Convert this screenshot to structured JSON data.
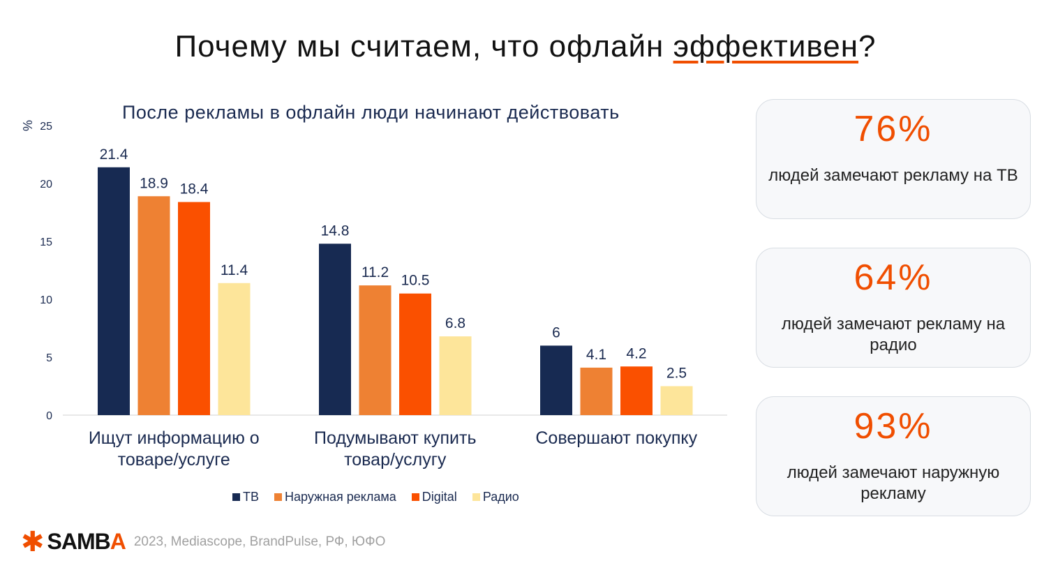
{
  "title": {
    "pre": "Почему мы считаем, что офлайн ",
    "underlined": "эффективен",
    "post": "?"
  },
  "chart_data": {
    "type": "bar",
    "title": "После рекламы в офлайн люди начинают действовать",
    "ylabel": "%",
    "ylim": [
      0,
      25
    ],
    "yticks": [
      0,
      5,
      10,
      15,
      20,
      25
    ],
    "categories": [
      "Ищут информацию о товаре/услуге",
      "Подумывают купить товар/услугу",
      "Совершают покупку"
    ],
    "series": [
      {
        "name": "ТВ",
        "color": "#172a52",
        "values": [
          21.4,
          14.8,
          6
        ]
      },
      {
        "name": "Наружная реклама",
        "color": "#ee8133",
        "values": [
          18.9,
          11.2,
          4.1
        ]
      },
      {
        "name": "Digital",
        "color": "#fa5000",
        "values": [
          18.4,
          10.5,
          4.2
        ]
      },
      {
        "name": "Радио",
        "color": "#fde59a",
        "values": [
          11.4,
          6.8,
          2.5
        ]
      }
    ],
    "legend": "bottom",
    "grid": false
  },
  "cards": [
    {
      "value": "76%",
      "text": "людей замечают рекламу на ТВ"
    },
    {
      "value": "64%",
      "text": "людей замечают рекламу на радио"
    },
    {
      "value": "93%",
      "text": "людей замечают наружную рекламу"
    }
  ],
  "footer": {
    "logo": "SAMBA",
    "logo_main": "SAMB",
    "logo_accent": "A",
    "source": "2023, Mediascope, BrandPulse, РФ, ЮФО"
  }
}
